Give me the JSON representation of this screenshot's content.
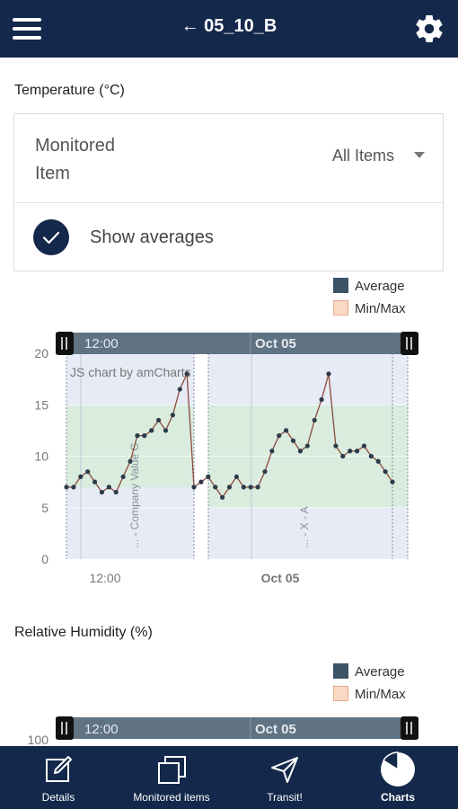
{
  "appbar": {
    "title": "← 05_10_B"
  },
  "temperature": {
    "title": "Temperature (°C)",
    "monitored_label_line1": "Monitored",
    "monitored_label_line2": "Item",
    "monitored_value": "All Items",
    "show_averages_label": "Show averages",
    "show_averages_checked": true,
    "legend_average": "Average",
    "legend_minmax": "Min/Max",
    "scrollbar_left_label": "12:00",
    "scrollbar_right_label": "Oct 05",
    "credit": "JS chart by amCharts"
  },
  "humidity": {
    "title": "Relative Humidity (%)",
    "legend_average": "Average",
    "legend_minmax": "Min/Max",
    "scrollbar_left_label": "12:00",
    "scrollbar_right_label": "Oct 05",
    "first_tick": "100"
  },
  "colors": {
    "primary": "#13284a",
    "average_line": "#3c5266",
    "minmax_fill": "#f9d9c6",
    "range_band_green": "#d7ecdb",
    "range_band_blue": "#e7ebf5"
  },
  "chart_data": {
    "type": "line",
    "ylim": [
      0,
      20
    ],
    "yticks": [
      "0",
      "5",
      "10",
      "15",
      "20"
    ],
    "xticks": [
      "12:00",
      "Oct 05"
    ],
    "guide_labels": [
      "... - Company Value C",
      "... - X - A"
    ],
    "series": [
      {
        "name": "Average",
        "values": [
          7,
          7,
          8,
          8.5,
          7.5,
          6.5,
          7,
          6.5,
          8,
          9.5,
          12,
          12,
          12.5,
          13.5,
          12.5,
          14,
          16.5,
          18,
          7,
          7.5,
          8,
          7,
          6,
          7,
          8,
          7,
          7,
          7,
          8.5,
          10.5,
          12,
          12.5,
          11.5,
          10.5,
          11,
          13.5,
          15.5,
          18,
          11,
          10,
          10.5,
          10.5,
          11,
          10,
          9.5,
          8.5,
          7.5
        ]
      }
    ]
  },
  "bottomnav": [
    {
      "label": "Details",
      "icon": "edit-icon"
    },
    {
      "label": "Monitored items",
      "icon": "copy-icon"
    },
    {
      "label": "Transit!",
      "icon": "send-icon"
    },
    {
      "label": "Charts",
      "icon": "pie-chart-icon"
    }
  ]
}
